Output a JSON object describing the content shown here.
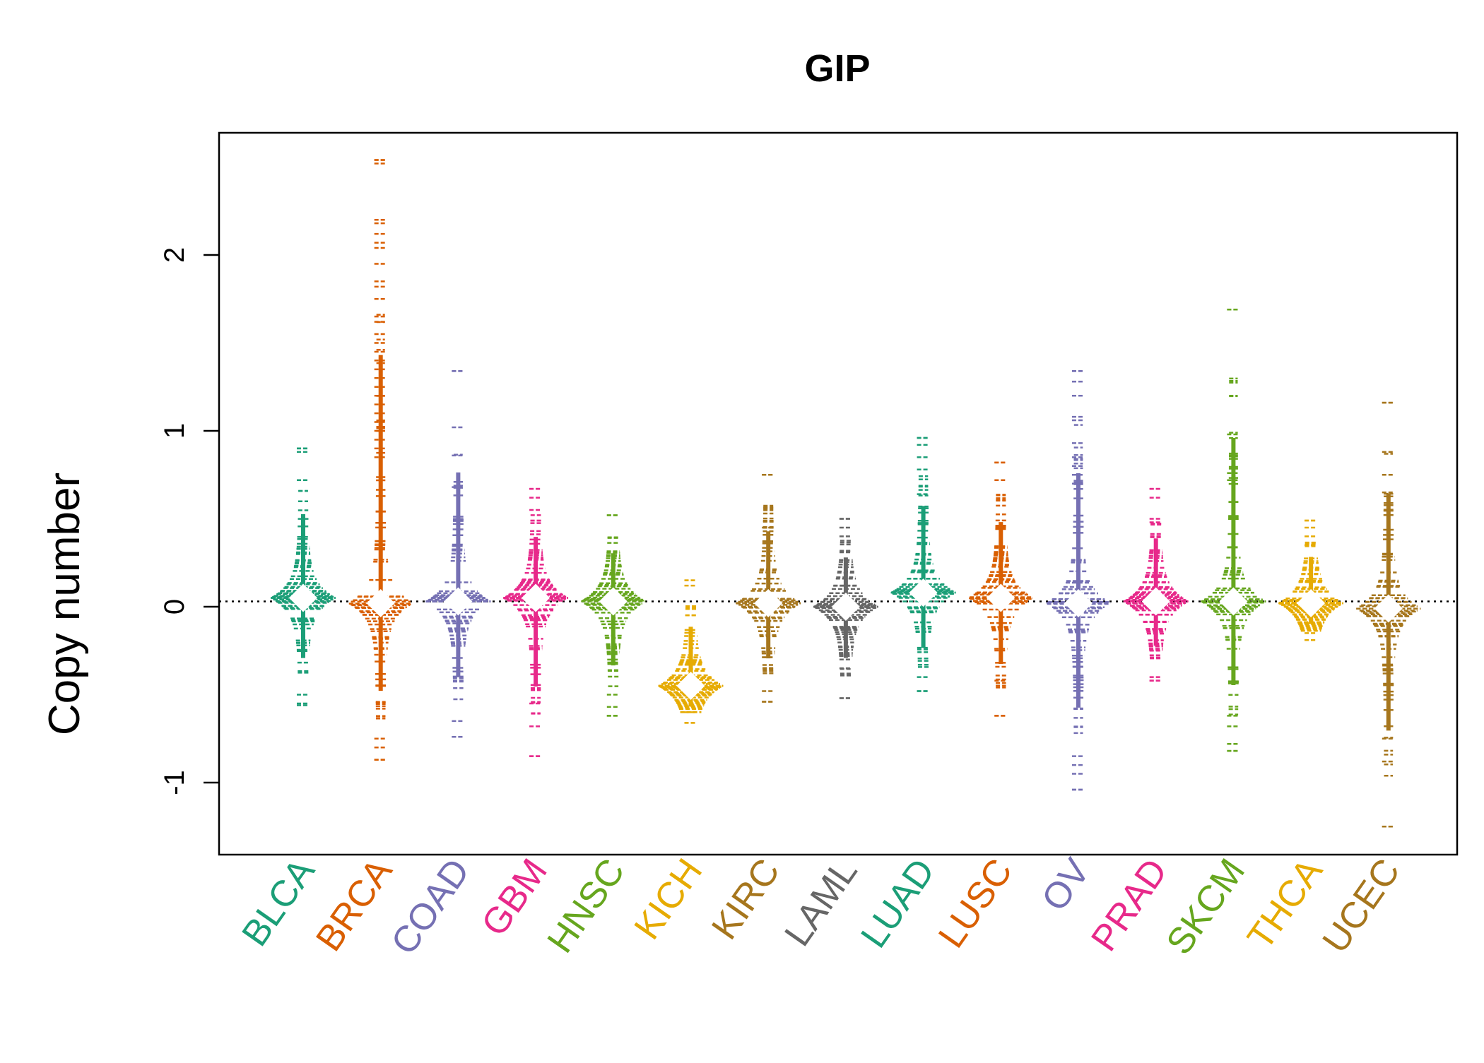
{
  "chart_data": {
    "type": "beeswarm",
    "title": "GIP",
    "xlabel": "",
    "ylabel": "Copy number",
    "ylim": [
      -1.4,
      2.7
    ],
    "yticks": [
      -1,
      0,
      1,
      2
    ],
    "ytick_labels": [
      "-1",
      "0",
      "1",
      "2"
    ],
    "reference_line": 0.03,
    "grid": false,
    "legend": "none",
    "categories": [
      "BLCA",
      "BRCA",
      "COAD",
      "GBM",
      "HNSC",
      "KICH",
      "KIRC",
      "LAML",
      "LUAD",
      "LUSC",
      "OV",
      "PRAD",
      "SKCM",
      "THCA",
      "UCEC"
    ],
    "colors": [
      "#1B9E77",
      "#D95F02",
      "#7570B3",
      "#E7298A",
      "#66A61E",
      "#E6AB02",
      "#A6761D",
      "#666666",
      "#1B9E77",
      "#D95F02",
      "#7570B3",
      "#E7298A",
      "#66A61E",
      "#E6AB02",
      "#A6761D"
    ],
    "series": [
      {
        "name": "BLCA",
        "min": -0.56,
        "max": 0.9,
        "center": 0.05,
        "outliers": [
          0.9,
          0.88,
          0.72,
          -0.5,
          -0.55
        ]
      },
      {
        "name": "BRCA",
        "min": -0.87,
        "max": 2.54,
        "center": 0.02,
        "outliers": [
          2.54,
          2.52,
          2.2,
          2.18,
          2.12,
          2.07,
          2.04,
          1.95,
          1.85,
          1.82,
          1.75,
          1.65,
          1.62,
          1.55,
          1.5,
          1.45,
          1.4,
          1.35,
          1.3,
          1.25,
          1.2,
          1.15,
          1.1,
          1.05,
          1.0,
          0.95,
          0.9,
          0.85,
          -0.75,
          -0.8,
          -0.87
        ]
      },
      {
        "name": "COAD",
        "min": -0.74,
        "max": 1.34,
        "center": 0.03,
        "outliers": [
          1.34,
          1.02,
          0.86,
          0.68,
          -0.65,
          -0.74
        ]
      },
      {
        "name": "GBM",
        "min": -0.85,
        "max": 0.67,
        "center": 0.05,
        "outliers": [
          0.67,
          0.62,
          0.55,
          -0.55,
          -0.68,
          -0.85
        ]
      },
      {
        "name": "HNSC",
        "min": -0.62,
        "max": 0.52,
        "center": 0.03,
        "outliers": [
          0.52,
          -0.5,
          -0.57,
          -0.62
        ]
      },
      {
        "name": "KICH",
        "min": -0.66,
        "max": 0.15,
        "center": -0.45,
        "outliers": [
          0.15,
          0.12,
          -0.6,
          -0.66
        ]
      },
      {
        "name": "KIRC",
        "min": -0.54,
        "max": 0.75,
        "center": 0.02,
        "outliers": [
          0.75,
          0.45,
          -0.48,
          -0.54
        ]
      },
      {
        "name": "LAML",
        "min": -0.52,
        "max": 0.5,
        "center": 0.0,
        "outliers": [
          0.5,
          0.45,
          0.4,
          -0.3,
          -0.35,
          -0.52
        ]
      },
      {
        "name": "LUAD",
        "min": -0.48,
        "max": 0.96,
        "center": 0.08,
        "outliers": [
          0.96,
          0.92,
          0.85,
          0.78,
          0.64,
          -0.4,
          -0.48
        ]
      },
      {
        "name": "LUSC",
        "min": -0.62,
        "max": 0.82,
        "center": 0.05,
        "outliers": [
          0.82,
          0.72,
          -0.42,
          -0.62
        ]
      },
      {
        "name": "OV",
        "min": -1.04,
        "max": 1.34,
        "center": 0.02,
        "outliers": [
          1.34,
          1.28,
          1.2,
          1.08,
          1.06,
          0.93,
          0.85,
          0.8,
          0.75,
          0.7,
          -0.85,
          -0.9,
          -0.95,
          -1.04
        ]
      },
      {
        "name": "PRAD",
        "min": -0.42,
        "max": 0.67,
        "center": 0.03,
        "outliers": [
          0.67,
          0.62,
          0.5,
          0.48,
          -0.25,
          -0.4,
          -0.42
        ]
      },
      {
        "name": "SKCM",
        "min": -0.82,
        "max": 1.69,
        "center": 0.03,
        "outliers": [
          1.69,
          0.98,
          0.76,
          0.72,
          -0.62,
          -0.68,
          -0.78,
          -0.82
        ]
      },
      {
        "name": "THCA",
        "min": -0.19,
        "max": 0.49,
        "center": 0.02,
        "outliers": [
          0.49,
          0.45,
          0.4,
          0.35,
          -0.15,
          -0.19
        ]
      },
      {
        "name": "UCEC",
        "min": -1.25,
        "max": 1.16,
        "center": -0.01,
        "outliers": [
          1.16,
          0.88,
          0.75,
          0.65,
          -0.75,
          -0.88,
          -1.25
        ]
      }
    ]
  }
}
